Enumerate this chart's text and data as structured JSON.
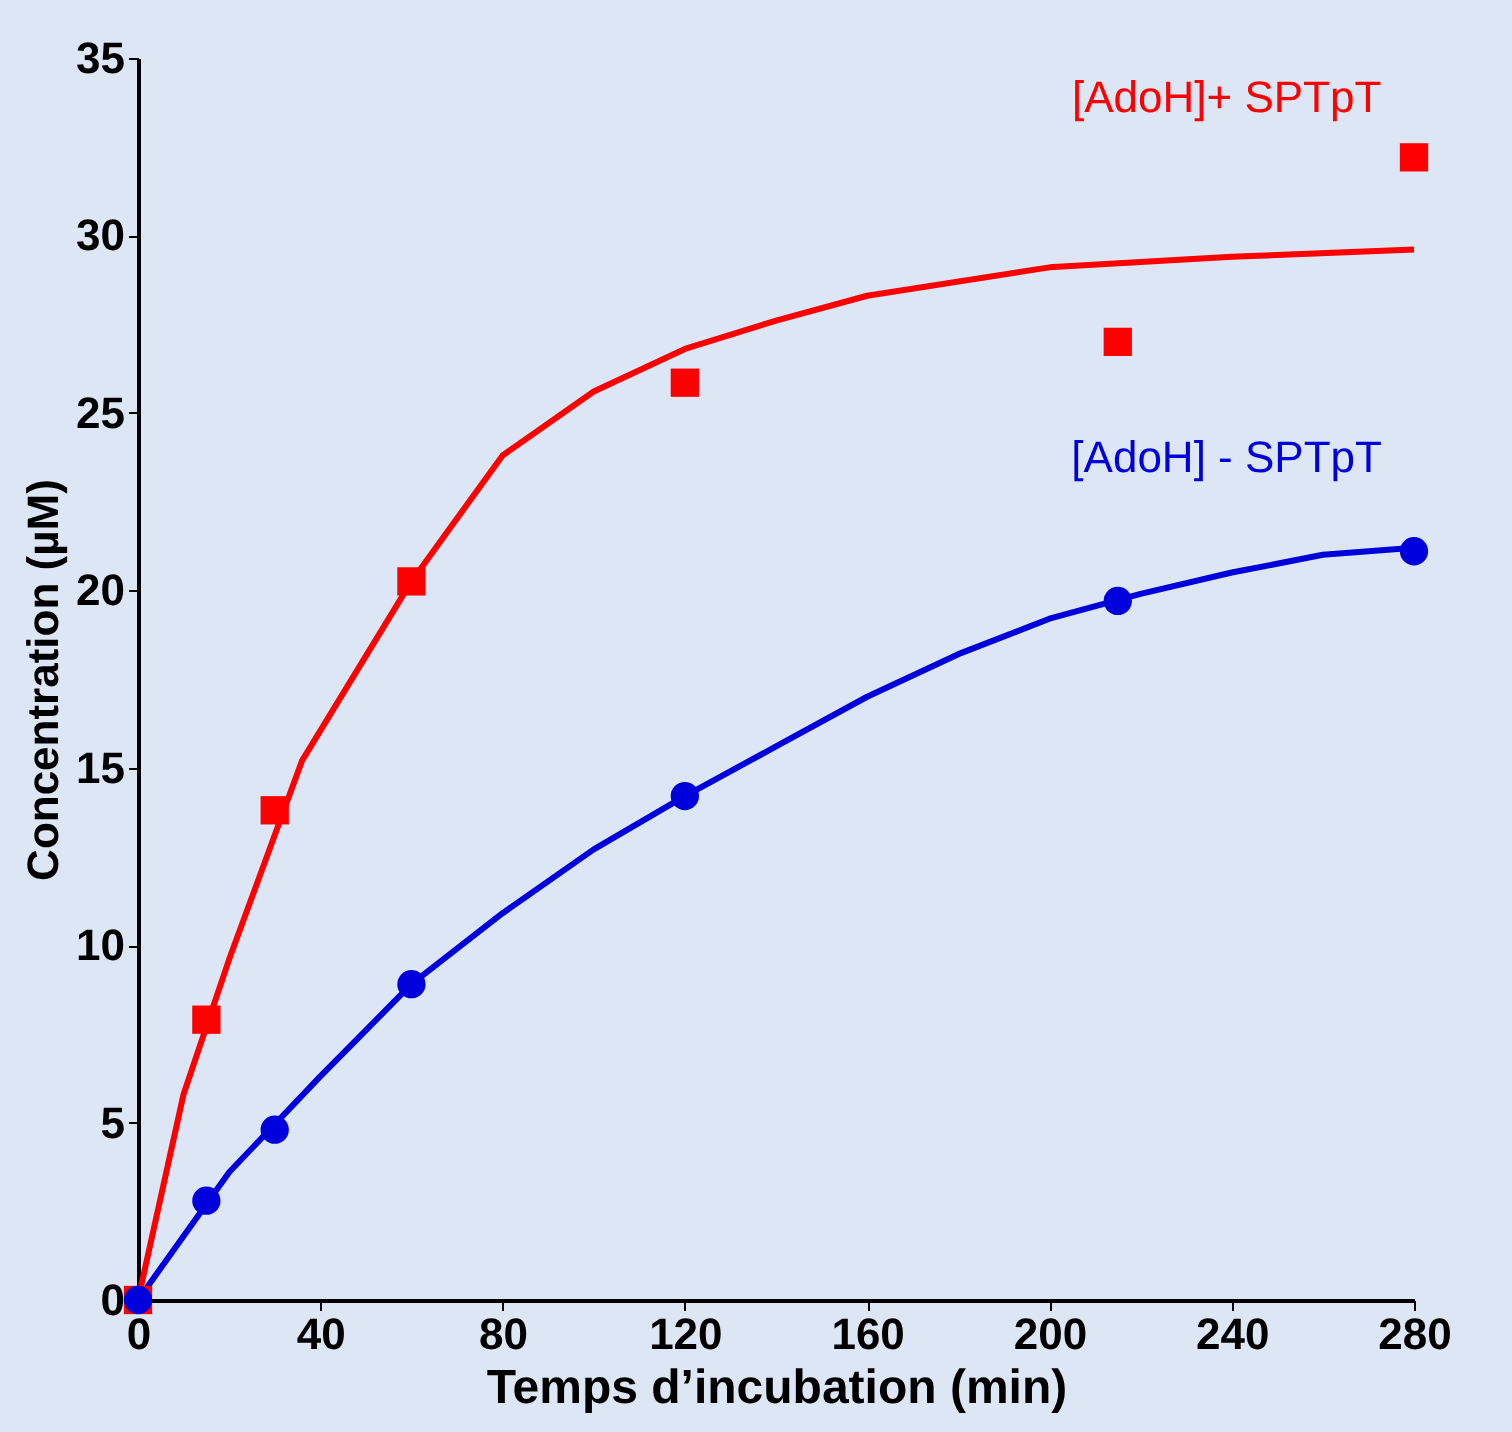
{
  "chart_data": {
    "type": "scatter",
    "xlabel": "Temps d’incubation (min)",
    "ylabel": "Concentration (µM)",
    "xlim": [
      0,
      280
    ],
    "ylim": [
      0,
      35
    ],
    "xticks": [
      0,
      40,
      80,
      120,
      160,
      200,
      240,
      280
    ],
    "yticks": [
      0,
      5,
      10,
      15,
      20,
      25,
      30,
      35
    ],
    "grid": false,
    "series": [
      {
        "type": "line",
        "color": "#ff0000",
        "x": [
          0,
          10,
          20,
          36,
          60,
          80,
          100,
          120,
          140,
          160,
          200,
          240,
          280
        ],
        "values": [
          0,
          5.8,
          9.6,
          15.2,
          20.25,
          23.8,
          25.6,
          26.8,
          27.6,
          28.3,
          29.1,
          29.4,
          29.6
        ]
      },
      {
        "type": "line",
        "color": "#0000dd",
        "x": [
          0,
          20,
          40,
          60,
          80,
          100,
          120,
          140,
          160,
          180,
          200,
          220,
          240,
          260,
          280
        ],
        "values": [
          0,
          3.6,
          6.3,
          8.9,
          10.9,
          12.7,
          14.2,
          15.6,
          17.0,
          18.2,
          19.2,
          19.9,
          20.5,
          21.0,
          21.2
        ]
      },
      {
        "name": "[AdoH]+ SPTpT",
        "marker": "square",
        "color": "#ff0000",
        "x": [
          0,
          15,
          30,
          60,
          120,
          215,
          280
        ],
        "values": [
          0,
          7.9,
          13.8,
          20.25,
          25.85,
          27.0,
          32.2
        ]
      },
      {
        "name": "[AdoH] - SPTpT",
        "marker": "circle",
        "color": "#0000dd",
        "x": [
          0,
          15,
          30,
          60,
          120,
          215,
          280
        ],
        "values": [
          0,
          2.8,
          4.8,
          8.9,
          14.2,
          19.7,
          21.1
        ]
      }
    ]
  }
}
